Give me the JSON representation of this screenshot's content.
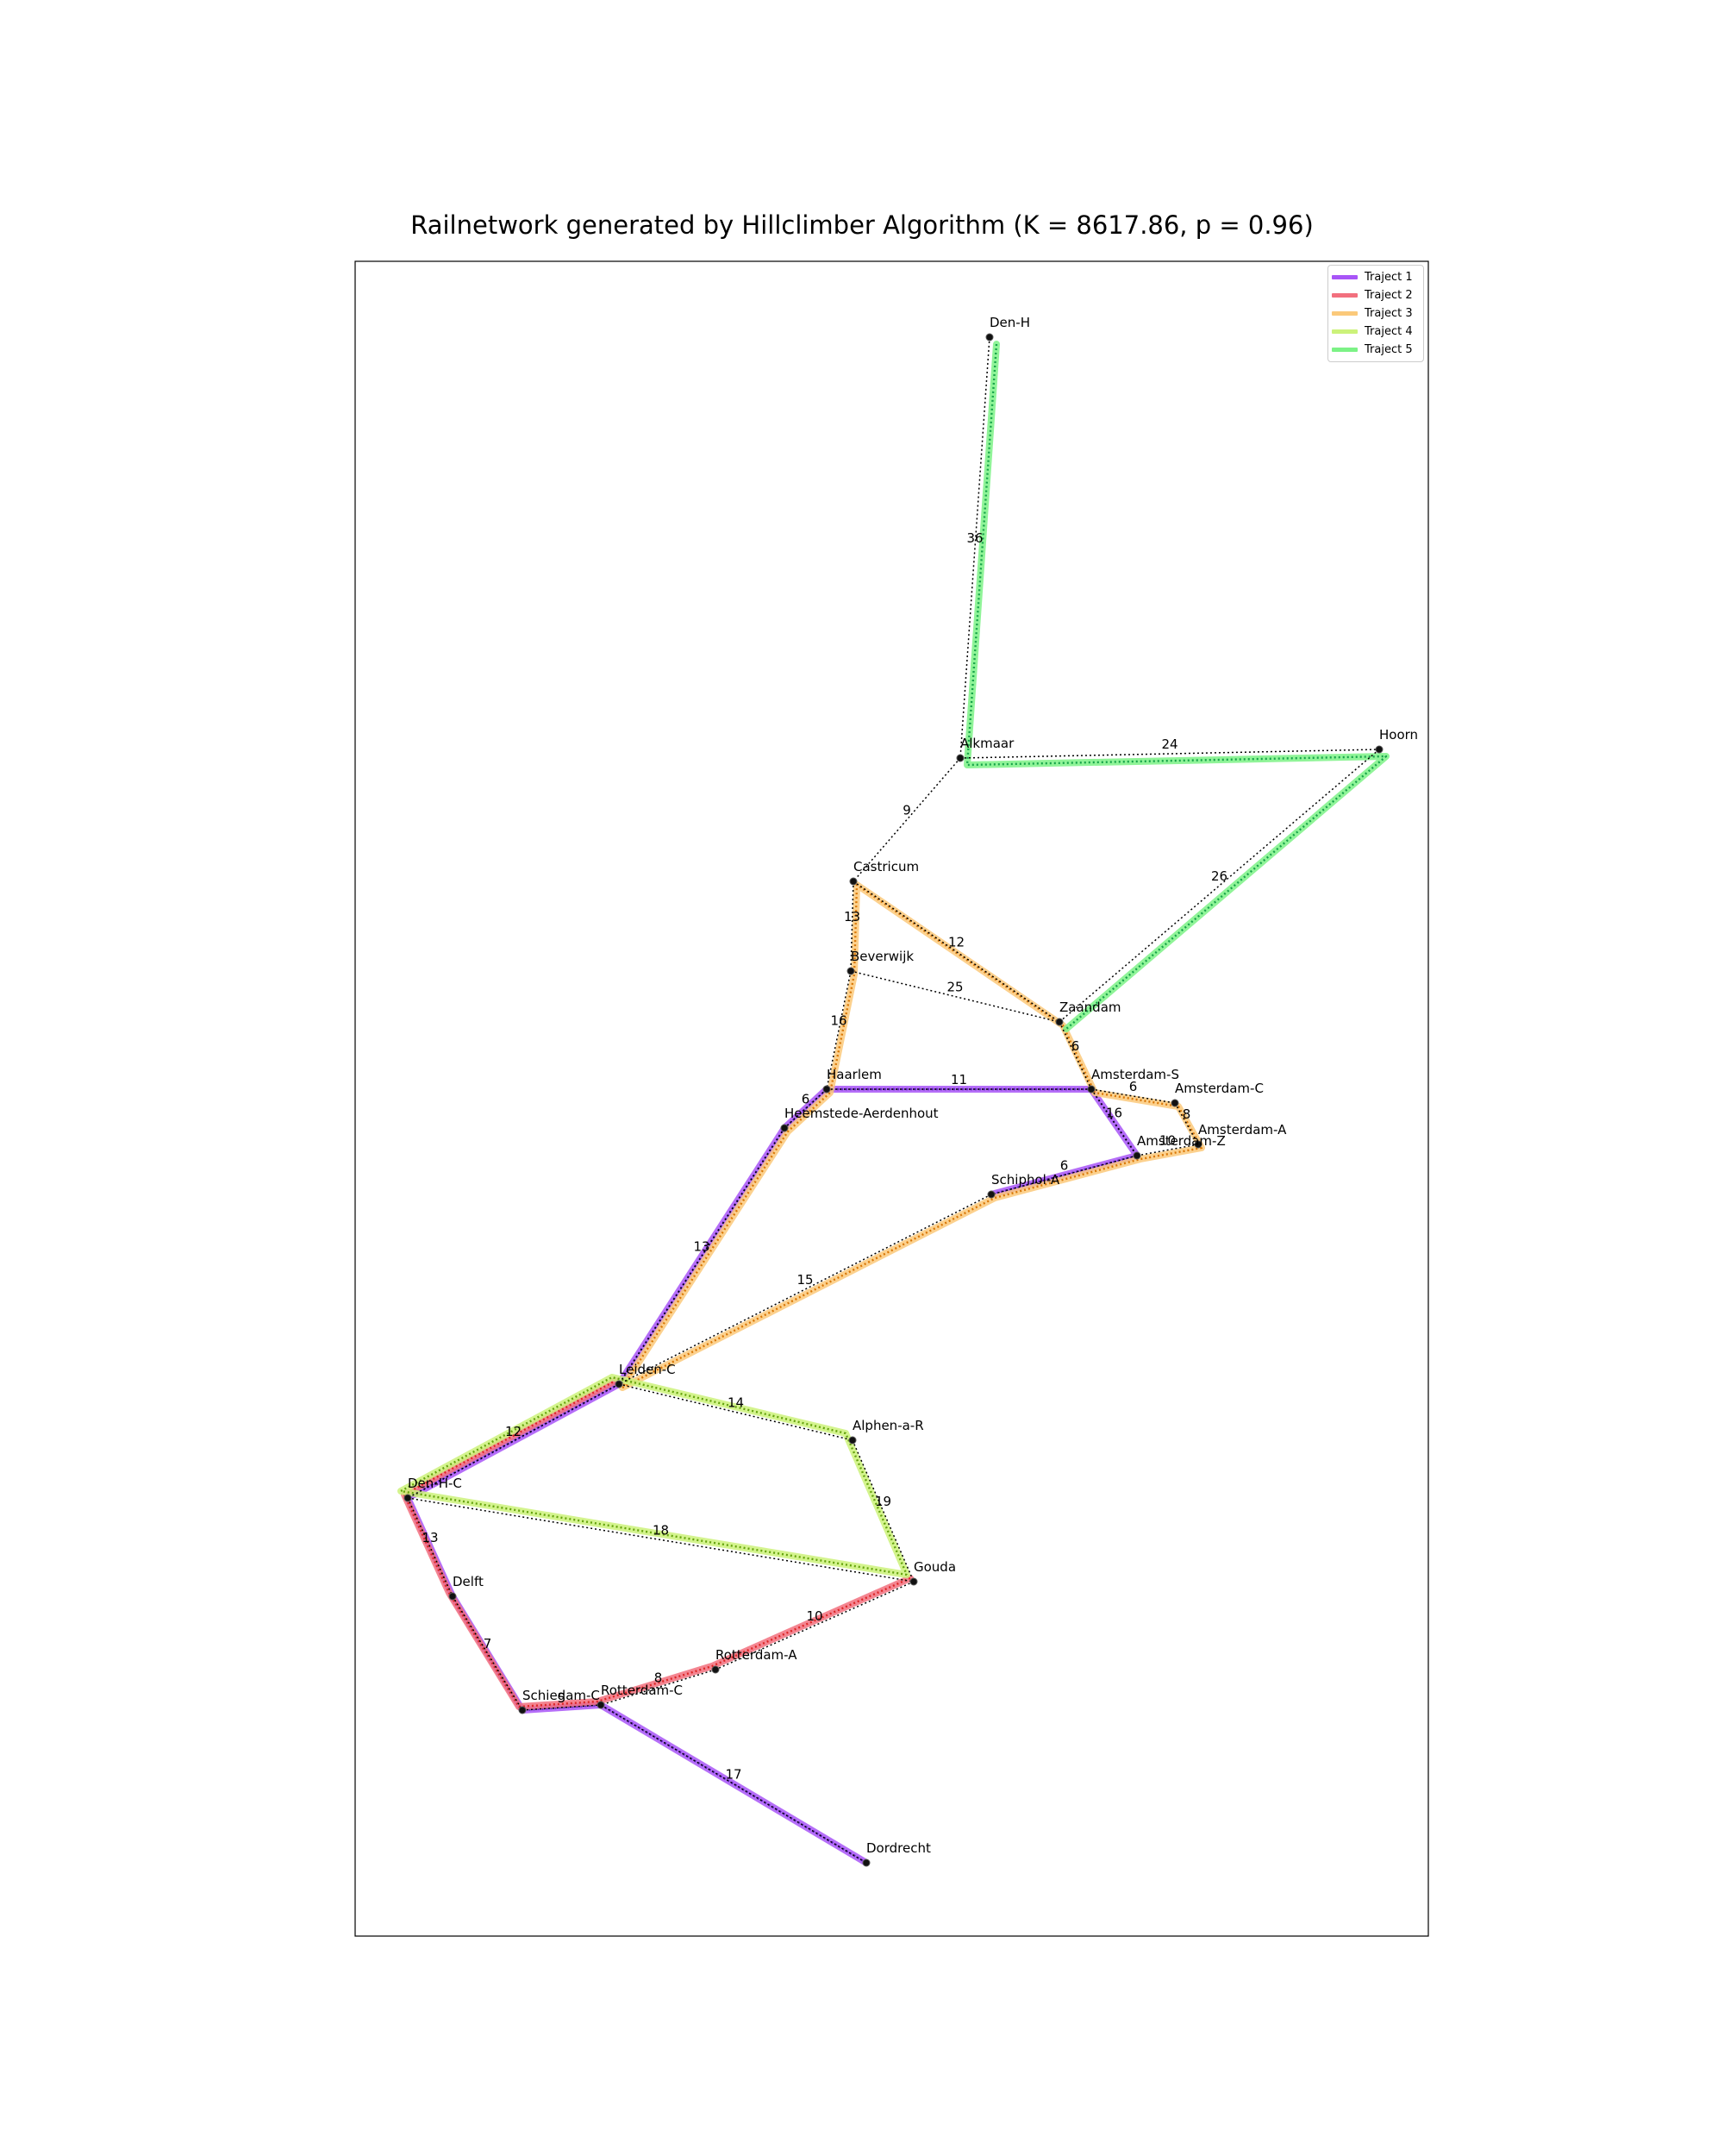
{
  "title": "Railnetwork generated by Hillclimber Algorithm (K = 8617.86, p = 0.96)",
  "stations": [
    {
      "id": "Den-H",
      "label": "Den-H"
    },
    {
      "id": "Alkmaar",
      "label": "Alkmaar"
    },
    {
      "id": "Hoorn",
      "label": "Hoorn"
    },
    {
      "id": "Castricum",
      "label": "Castricum"
    },
    {
      "id": "Beverwijk",
      "label": "Beverwijk"
    },
    {
      "id": "Zaandam",
      "label": "Zaandam"
    },
    {
      "id": "Haarlem",
      "label": "Haarlem"
    },
    {
      "id": "Amsterdam-S",
      "label": "Amsterdam-S"
    },
    {
      "id": "Amsterdam-C",
      "label": "Amsterdam-C"
    },
    {
      "id": "Amsterdam-A",
      "label": "Amsterdam-A"
    },
    {
      "id": "Amsterdam-Z",
      "label": "Amsterdam-Z"
    },
    {
      "id": "Heemstede-Aerdenhout",
      "label": "Heemstede-Aerdenhout"
    },
    {
      "id": "Schiphol-A",
      "label": "Schiphol-A"
    },
    {
      "id": "Leiden-C",
      "label": "Leiden-C"
    },
    {
      "id": "Alphen-a-R",
      "label": "Alphen-a-R"
    },
    {
      "id": "Den-H-C",
      "label": "Den-H-C"
    },
    {
      "id": "Gouda",
      "label": "Gouda"
    },
    {
      "id": "Delft",
      "label": "Delft"
    },
    {
      "id": "Rotterdam-A",
      "label": "Rotterdam-A"
    },
    {
      "id": "Schiedam-C",
      "label": "Schiedam-C"
    },
    {
      "id": "Rotterdam-C",
      "label": "Rotterdam-C"
    },
    {
      "id": "Dordrecht",
      "label": "Dordrecht"
    }
  ],
  "connections": [
    {
      "from": "Den-H",
      "to": "Alkmaar",
      "minutes": "36"
    },
    {
      "from": "Alkmaar",
      "to": "Hoorn",
      "minutes": "24"
    },
    {
      "from": "Alkmaar",
      "to": "Castricum",
      "minutes": "9"
    },
    {
      "from": "Hoorn",
      "to": "Zaandam",
      "minutes": "26"
    },
    {
      "from": "Castricum",
      "to": "Beverwijk",
      "minutes": "13"
    },
    {
      "from": "Castricum",
      "to": "Zaandam",
      "minutes": "12"
    },
    {
      "from": "Beverwijk",
      "to": "Zaandam",
      "minutes": "25"
    },
    {
      "from": "Beverwijk",
      "to": "Haarlem",
      "minutes": "16"
    },
    {
      "from": "Zaandam",
      "to": "Amsterdam-S",
      "minutes": "6"
    },
    {
      "from": "Haarlem",
      "to": "Amsterdam-S",
      "minutes": "11"
    },
    {
      "from": "Haarlem",
      "to": "Heemstede-Aerdenhout",
      "minutes": "6"
    },
    {
      "from": "Amsterdam-S",
      "to": "Amsterdam-C",
      "minutes": "6"
    },
    {
      "from": "Amsterdam-S",
      "to": "Amsterdam-Z",
      "minutes": "16"
    },
    {
      "from": "Amsterdam-C",
      "to": "Amsterdam-A",
      "minutes": "8"
    },
    {
      "from": "Amsterdam-A",
      "to": "Amsterdam-Z",
      "minutes": "10"
    },
    {
      "from": "Amsterdam-Z",
      "to": "Schiphol-A",
      "minutes": "6"
    },
    {
      "from": "Heemstede-Aerdenhout",
      "to": "Leiden-C",
      "minutes": "13"
    },
    {
      "from": "Schiphol-A",
      "to": "Leiden-C",
      "minutes": "15"
    },
    {
      "from": "Leiden-C",
      "to": "Alphen-a-R",
      "minutes": "14"
    },
    {
      "from": "Leiden-C",
      "to": "Den-H-C",
      "minutes": "12"
    },
    {
      "from": "Alphen-a-R",
      "to": "Gouda",
      "minutes": "19"
    },
    {
      "from": "Den-H-C",
      "to": "Gouda",
      "minutes": "18"
    },
    {
      "from": "Den-H-C",
      "to": "Delft",
      "minutes": "13"
    },
    {
      "from": "Gouda",
      "to": "Rotterdam-A",
      "minutes": "10"
    },
    {
      "from": "Delft",
      "to": "Schiedam-C",
      "minutes": "7"
    },
    {
      "from": "Rotterdam-A",
      "to": "Rotterdam-C",
      "minutes": "8"
    },
    {
      "from": "Schiedam-C",
      "to": "Rotterdam-C",
      "minutes": "5"
    },
    {
      "from": "Rotterdam-C",
      "to": "Dordrecht",
      "minutes": "17"
    }
  ],
  "routes": [
    {
      "name": "Traject 1",
      "color": "#a855f7",
      "dot": "#5b21b6",
      "stations": [
        "Dordrecht",
        "Rotterdam-C",
        "Schiedam-C",
        "Delft",
        "Den-H-C",
        "Leiden-C",
        "Heemstede-Aerdenhout",
        "Haarlem",
        "Amsterdam-S",
        "Amsterdam-Z",
        "Schiphol-A"
      ]
    },
    {
      "name": "Traject 2",
      "color": "#f2707e",
      "dot": "#dc2626",
      "stations": [
        "Gouda",
        "Rotterdam-A",
        "Rotterdam-C",
        "Schiedam-C",
        "Delft",
        "Den-H-C",
        "Leiden-C"
      ]
    },
    {
      "name": "Traject 3",
      "color": "#fbc97a",
      "dot": "#d97706",
      "stations": [
        "Leiden-C",
        "Schiphol-A",
        "Amsterdam-Z",
        "Amsterdam-A",
        "Amsterdam-C",
        "Amsterdam-S",
        "Zaandam",
        "Castricum",
        "Beverwijk",
        "Haarlem",
        "Heemstede-Aerdenhout",
        "Leiden-C"
      ]
    },
    {
      "name": "Traject 4",
      "color": "#ccf27a",
      "dot": "#65a30d",
      "stations": [
        "Gouda",
        "Den-H-C",
        "Leiden-C",
        "Alphen-a-R",
        "Gouda"
      ]
    },
    {
      "name": "Traject 5",
      "color": "#7cf286",
      "dot": "#16a34a",
      "stations": [
        "Den-H",
        "Alkmaar",
        "Hoorn",
        "Zaandam"
      ]
    }
  ],
  "legend": {
    "placement": "top-right"
  }
}
